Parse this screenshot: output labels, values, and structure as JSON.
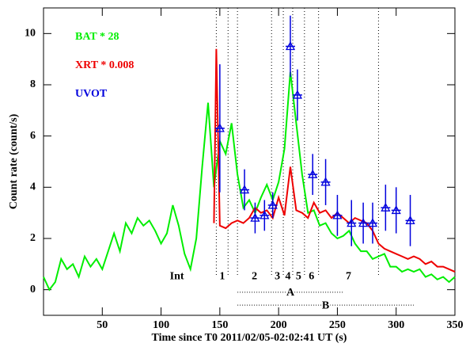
{
  "chart_data": {
    "type": "line",
    "xlabel": "Time since T0  2011/02/05-02:02:41 UT (s)",
    "ylabel": "Count rate (count/s)",
    "xlim": [
      0,
      350
    ],
    "ylim": [
      -1,
      11
    ],
    "xticks": [
      50,
      100,
      150,
      200,
      250,
      300,
      350
    ],
    "yticks": [
      0,
      2,
      4,
      6,
      8,
      10
    ],
    "series": [
      {
        "name": "BAT * 28",
        "color": "#00ee00",
        "style": "line",
        "x": [
          0,
          5,
          10,
          15,
          20,
          25,
          30,
          35,
          40,
          45,
          50,
          55,
          60,
          65,
          70,
          75,
          80,
          85,
          90,
          95,
          100,
          105,
          110,
          115,
          120,
          125,
          130,
          135,
          140,
          145,
          150,
          155,
          160,
          165,
          170,
          175,
          180,
          185,
          190,
          195,
          200,
          205,
          210,
          215,
          220,
          225,
          230,
          235,
          240,
          245,
          250,
          255,
          260,
          265,
          270,
          275,
          280,
          285,
          290,
          295,
          300,
          305,
          310,
          315,
          320,
          325,
          330,
          335,
          340,
          345,
          350
        ],
        "values": [
          0.5,
          0,
          0.3,
          1.2,
          0.8,
          1.0,
          0.5,
          1.3,
          0.9,
          1.2,
          0.8,
          1.5,
          2.2,
          1.5,
          2.6,
          2.2,
          2.8,
          2.5,
          2.7,
          2.3,
          1.8,
          2.2,
          3.3,
          2.5,
          1.4,
          0.8,
          2.0,
          4.8,
          7.3,
          4.0,
          5.8,
          5.3,
          6.5,
          4.5,
          3.2,
          3.5,
          3.0,
          3.6,
          4.1,
          3.5,
          4.2,
          5.5,
          8.5,
          6.5,
          4.5,
          3.0,
          3.1,
          2.5,
          2.6,
          2.2,
          2.0,
          2.1,
          2.3,
          1.8,
          1.5,
          1.5,
          1.2,
          1.3,
          1.4,
          0.9,
          0.9,
          0.7,
          0.8,
          0.7,
          0.8,
          0.5,
          0.6,
          0.4,
          0.5,
          0.3,
          0.5
        ]
      },
      {
        "name": "XRT * 0.008",
        "color": "#ee0000",
        "style": "line",
        "x": [
          145,
          147,
          150,
          155,
          160,
          165,
          170,
          175,
          180,
          185,
          190,
          195,
          200,
          205,
          210,
          215,
          220,
          225,
          230,
          235,
          240,
          245,
          250,
          255,
          260,
          265,
          270,
          275,
          280,
          285,
          290,
          295,
          300,
          305,
          310,
          315,
          320,
          325,
          330,
          335,
          340,
          345,
          350
        ],
        "values": [
          2.6,
          9.4,
          2.5,
          2.4,
          2.6,
          2.7,
          2.6,
          2.8,
          3.2,
          3.0,
          3.1,
          2.8,
          3.6,
          2.9,
          4.8,
          3.1,
          3.0,
          2.8,
          3.4,
          3.0,
          3.1,
          2.8,
          3.0,
          2.8,
          2.6,
          2.8,
          2.7,
          2.6,
          2.3,
          1.8,
          1.6,
          1.5,
          1.4,
          1.3,
          1.2,
          1.3,
          1.2,
          1.0,
          1.1,
          0.9,
          0.9,
          0.8,
          0.7
        ]
      },
      {
        "name": "UVOT",
        "color": "#0000dd",
        "style": "points",
        "x": [
          150,
          171,
          180,
          188,
          195,
          210,
          216,
          229,
          240,
          250,
          262,
          272,
          280,
          291,
          300,
          312
        ],
        "values": [
          6.3,
          3.9,
          2.8,
          2.9,
          3.3,
          9.5,
          7.6,
          4.5,
          4.2,
          2.9,
          2.6,
          2.6,
          2.6,
          3.2,
          3.1,
          2.7
        ],
        "errors": [
          2.5,
          0.8,
          0.6,
          0.6,
          0.5,
          1.2,
          1.0,
          0.8,
          0.9,
          0.8,
          0.9,
          0.8,
          0.8,
          0.9,
          0.9,
          1.0
        ]
      }
    ],
    "vlines": [
      147,
      157,
      165,
      194,
      204,
      212,
      222,
      234,
      285
    ],
    "segments": [
      {
        "label": "Int",
        "x": [
          80,
          147
        ]
      },
      {
        "label": "1",
        "x": [
          147,
          157
        ]
      },
      {
        "label": "2",
        "x": [
          165,
          194
        ]
      },
      {
        "label": "3",
        "x": [
          194,
          204
        ]
      },
      {
        "label": "4",
        "x": [
          204,
          212
        ]
      },
      {
        "label": "5",
        "x": [
          212,
          222
        ]
      },
      {
        "label": "6",
        "x": [
          222,
          234
        ]
      },
      {
        "label": "7",
        "x": [
          234,
          285
        ]
      }
    ],
    "intervals": [
      {
        "label": "A",
        "x": [
          165,
          255
        ]
      },
      {
        "label": "B",
        "x": [
          165,
          315
        ]
      }
    ]
  }
}
